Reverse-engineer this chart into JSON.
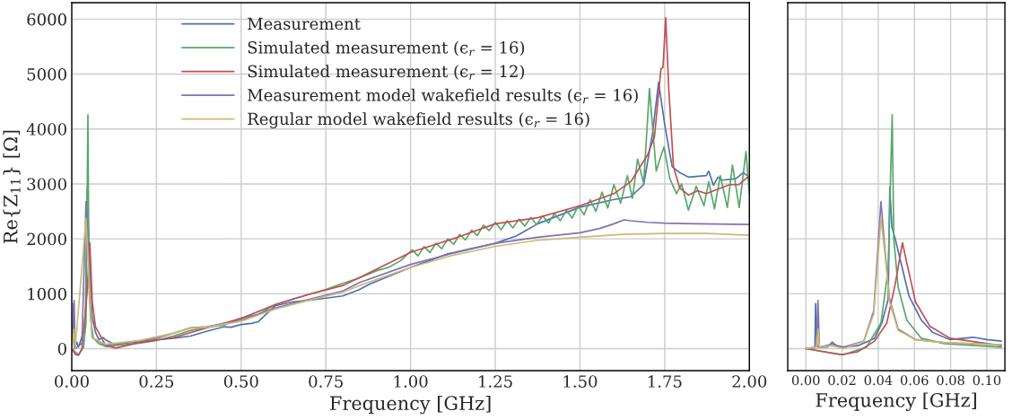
{
  "chart_data": [
    {
      "type": "line",
      "xlabel": "Frequency [GHz]",
      "ylabel": "Re{Z$_{11}$} [Ω]",
      "xlim": [
        0,
        2
      ],
      "ylim": [
        -400,
        6300
      ],
      "xticks": [
        {
          "value": 0,
          "label": "0.00"
        },
        {
          "value": 0.25,
          "label": "0.25"
        },
        {
          "value": 0.5,
          "label": "0.50"
        },
        {
          "value": 0.75,
          "label": "0.75"
        },
        {
          "value": 1.0,
          "label": "1.00"
        },
        {
          "value": 1.25,
          "label": "1.25"
        },
        {
          "value": 1.5,
          "label": "1.50"
        },
        {
          "value": 1.75,
          "label": "1.75"
        },
        {
          "value": 2.0,
          "label": "2.00"
        }
      ],
      "yticks": [
        0,
        1000,
        2000,
        3000,
        4000,
        5000,
        6000
      ],
      "grid": true,
      "legend": "top",
      "series": [
        {
          "name": "Measurement",
          "color": "#4c72b0",
          "x": [
            0,
            0.0055,
            0.008,
            0.015,
            0.02,
            0.04,
            0.046,
            0.05,
            0.06,
            0.07,
            0.08,
            0.0927,
            0.1,
            0.125,
            0.2,
            0.25,
            0.3,
            0.35,
            0.4,
            0.45,
            0.47,
            0.5,
            0.53,
            0.55,
            0.6,
            0.65,
            0.7,
            0.75,
            0.8,
            0.847,
            0.88,
            0.935,
            1.0,
            1.11,
            1.25,
            1.313,
            1.375,
            1.5,
            1.598,
            1.65,
            1.688,
            1.714,
            1.732,
            1.75,
            1.772,
            1.794,
            1.82,
            1.873,
            1.88,
            1.894,
            1.907,
            1.92,
            1.96,
            1.982,
            2.0
          ],
          "values": [
            0,
            822,
            0,
            120,
            30,
            400,
            2943,
            2000,
            600,
            300,
            165,
            203,
            160,
            80,
            130,
            160,
            190,
            230,
            320,
            400,
            390,
            440,
            460,
            490,
            780,
            850,
            880,
            920,
            960,
            1070,
            1178,
            1315,
            1480,
            1726,
            1918,
            2055,
            2274,
            2576,
            2713,
            2767,
            2987,
            3918,
            4850,
            4083,
            3315,
            3206,
            3124,
            3151,
            3233,
            2976,
            3124,
            3069,
            3096,
            3206,
            3124
          ]
        },
        {
          "name": "Simulated measurement (ϵ$_{r}$ = 16)",
          "color": "#55a868",
          "x": [
            0,
            0.02,
            0.035,
            0.042,
            0.0477,
            0.051,
            0.056,
            0.064,
            0.08,
            0.1,
            0.15,
            0.2,
            0.25,
            0.3,
            0.35,
            0.4,
            0.45,
            0.5,
            0.55,
            0.6,
            0.65,
            0.7,
            0.75,
            0.8,
            0.85,
            0.9,
            0.935,
            0.97,
            1.005,
            1.022,
            1.04,
            1.057,
            1.075,
            1.092,
            1.11,
            1.127,
            1.145,
            1.162,
            1.18,
            1.197,
            1.215,
            1.232,
            1.25,
            1.267,
            1.285,
            1.302,
            1.32,
            1.337,
            1.355,
            1.372,
            1.39,
            1.407,
            1.425,
            1.442,
            1.46,
            1.477,
            1.495,
            1.512,
            1.53,
            1.547,
            1.565,
            1.582,
            1.6,
            1.62,
            1.64,
            1.655,
            1.67,
            1.688,
            1.705,
            1.725,
            1.74,
            1.748,
            1.765,
            1.785,
            1.8,
            1.82,
            1.843,
            1.866,
            1.88,
            1.897,
            1.914,
            1.935,
            1.95,
            1.97,
            1.99,
            2.0
          ],
          "values": [
            0,
            -110,
            30,
            466,
            4258,
            1120,
            520,
            190,
            90,
            40,
            70,
            100,
            150,
            230,
            330,
            390,
            430,
            560,
            620,
            800,
            900,
            990,
            1080,
            1190,
            1290,
            1420,
            1480,
            1600,
            1800,
            1690,
            1860,
            1750,
            1920,
            1820,
            2000,
            1900,
            2080,
            1980,
            2160,
            2060,
            2250,
            2150,
            2300,
            2165,
            2330,
            2200,
            2360,
            2230,
            2390,
            2260,
            2420,
            2290,
            2460,
            2330,
            2520,
            2380,
            2600,
            2438,
            2713,
            2500,
            2850,
            2560,
            2987,
            2650,
            3151,
            2740,
            3452,
            3014,
            4740,
            3233,
            3535,
            3671,
            3100,
            2822,
            3000,
            2521,
            2959,
            2603,
            3041,
            2548,
            3151,
            2570,
            3343,
            2570,
            3589,
            2822
          ]
        },
        {
          "name": "Simulated measurement (ϵ$_{r}$ = 12)",
          "color": "#c44e52",
          "x": [
            0,
            0.01,
            0.02,
            0.03,
            0.045,
            0.0534,
            0.0606,
            0.07,
            0.1,
            0.13,
            0.2,
            0.3,
            0.4,
            0.5,
            0.6,
            0.7,
            0.8,
            0.847,
            1.0,
            1.125,
            1.25,
            1.375,
            1.5,
            1.6,
            1.65,
            1.7,
            1.72,
            1.739,
            1.745,
            1.753,
            1.762,
            1.776,
            1.794,
            1.82,
            1.847,
            1.873,
            1.907,
            1.942,
            1.969,
            1.995,
            2.0
          ],
          "values": [
            0,
            -100,
            -120,
            0,
            1000,
            1930,
            850,
            400,
            60,
            10,
            110,
            200,
            380,
            550,
            800,
            990,
            1150,
            1288,
            1754,
            2000,
            2274,
            2384,
            2603,
            2822,
            3041,
            3535,
            3863,
            5096,
            5124,
            6028,
            4740,
            3315,
            2932,
            2795,
            2877,
            2822,
            2904,
            2987,
            2987,
            3124,
            3096
          ]
        },
        {
          "name": "Measurement model wakefield results (ϵ$_{r}$ = 16)",
          "color": "#8172b2",
          "x": [
            0,
            0.007,
            0.01,
            0.03,
            0.042,
            0.06,
            0.1,
            0.15,
            0.2,
            0.25,
            0.3,
            0.35,
            0.4,
            0.5,
            0.6,
            0.7,
            0.8,
            0.85,
            1.0,
            1.125,
            1.25,
            1.375,
            1.5,
            1.56,
            1.6,
            1.63,
            1.65,
            1.7,
            1.75,
            1.85,
            2.0
          ],
          "values": [
            0,
            877,
            0,
            100,
            2680,
            200,
            60,
            100,
            140,
            190,
            280,
            380,
            400,
            520,
            740,
            900,
            1050,
            1206,
            1534,
            1737,
            1918,
            2028,
            2110,
            2192,
            2274,
            2345,
            2329,
            2301,
            2285,
            2274,
            2263
          ]
        },
        {
          "name": "Regular model wakefield results (ϵ$_{r}$ = 16)",
          "color": "#ccb974",
          "x": [
            0,
            0.007,
            0.01,
            0.042,
            0.06,
            0.1,
            0.2,
            0.3,
            0.35,
            0.4,
            0.5,
            0.6,
            0.7,
            0.8,
            0.85,
            1.0,
            1.125,
            1.25,
            1.375,
            1.5,
            1.625,
            1.75,
            1.875,
            2.0
          ],
          "values": [
            0,
            356,
            0,
            2367,
            200,
            80,
            150,
            280,
            370,
            390,
            500,
            720,
            880,
            1030,
            1150,
            1480,
            1699,
            1863,
            1973,
            2028,
            2082,
            2099,
            2099,
            2066
          ]
        }
      ]
    },
    {
      "type": "line",
      "xlabel": "Frequency [GHz]",
      "xlim": [
        -0.01,
        0.11
      ],
      "ylim": [
        -400,
        6300
      ],
      "xticks": [
        {
          "value": 0,
          "label": "0.00"
        },
        {
          "value": 0.02,
          "label": "0.02"
        },
        {
          "value": 0.04,
          "label": "0.04"
        },
        {
          "value": 0.06,
          "label": "0.06"
        },
        {
          "value": 0.08,
          "label": "0.08"
        },
        {
          "value": 0.1,
          "label": "0.10"
        }
      ],
      "yticks": [
        0,
        1000,
        2000,
        3000,
        4000,
        5000,
        6000
      ],
      "grid": true,
      "tick_labels": "x",
      "series": [
        {
          "color": "#4c72b0",
          "x": [
            0,
            0.005,
            0.0054,
            0.0062,
            0.008,
            0.012,
            0.0145,
            0.017,
            0.02,
            0.0288,
            0.038,
            0.042,
            0.0455,
            0.0464,
            0.0475,
            0.0494,
            0.0526,
            0.057,
            0.0638,
            0.07,
            0.0797,
            0.0924,
            0.1,
            0.108
          ],
          "values": [
            0,
            20,
            822,
            40,
            27,
            30,
            120,
            50,
            27,
            55,
            190,
            466,
            900,
            2943,
            2220,
            2000,
            1560,
            960,
            520,
            300,
            165,
            208,
            165,
            137
          ]
        },
        {
          "color": "#55a868",
          "x": [
            0,
            0.0208,
            0.0335,
            0.0415,
            0.0455,
            0.0477,
            0.0486,
            0.051,
            0.0558,
            0.0638,
            0.0765,
            0.108
          ],
          "values": [
            0,
            -110,
            27,
            466,
            1450,
            4258,
            2000,
            1120,
            520,
            190,
            93,
            27
          ]
        },
        {
          "color": "#c44e52",
          "x": [
            0,
            0.0192,
            0.0288,
            0.038,
            0.0447,
            0.0494,
            0.0534,
            0.0558,
            0.0606,
            0.0685,
            0.0797,
            0.108
          ],
          "values": [
            0,
            -110,
            -55,
            137,
            466,
            1180,
            1930,
            1560,
            850,
            410,
            190,
            55
          ]
        },
        {
          "color": "#8172b2",
          "x": [
            0,
            0.006,
            0.0067,
            0.0075,
            0.0145,
            0.0208,
            0.032,
            0.0375,
            0.0402,
            0.0415,
            0.0439,
            0.0463,
            0.051,
            0.0606,
            0.0765,
            0.108
          ],
          "values": [
            0,
            30,
            877,
            27,
            82,
            27,
            137,
            685,
            2000,
            2680,
            1726,
            904,
            356,
            165,
            110,
            71
          ]
        },
        {
          "color": "#ccb974",
          "x": [
            0,
            0.006,
            0.0067,
            0.0075,
            0.0145,
            0.0208,
            0.032,
            0.0375,
            0.0415,
            0.0439,
            0.0463,
            0.051,
            0.0606,
            0.0765,
            0.108
          ],
          "values": [
            0,
            30,
            356,
            27,
            55,
            0,
            137,
            630,
            2367,
            1670,
            850,
            330,
            165,
            110,
            71
          ]
        }
      ]
    }
  ]
}
